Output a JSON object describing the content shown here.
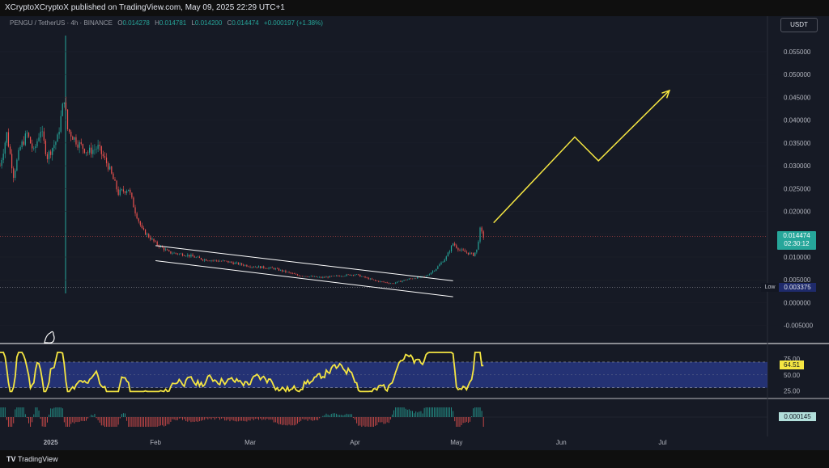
{
  "header": {
    "publish_text": "XCryptoXCryptoX published on TradingView.com, May 09, 2025 22:29 UTC+1"
  },
  "symbol": {
    "name": "PENGU / TetherUS · 4h · BINANCE",
    "open_label": "O",
    "open": "0.014278",
    "high_label": "H",
    "high": "0.014781",
    "low_label": "L",
    "low": "0.014200",
    "close_label": "C",
    "close": "0.014474",
    "change": "+0.000197 (+1.38%)"
  },
  "currency_button": "USDT",
  "price_badge": {
    "price": "0.014474",
    "countdown": "02:30:12",
    "color": "#26a69a"
  },
  "low_badge": {
    "label": "Low",
    "value": "0.003375"
  },
  "rsi_badge": "64.51",
  "macd_badge": "0.000145",
  "footer": {
    "brand": "TradingView",
    "logo": "TV"
  },
  "colors": {
    "up": "#26a69a",
    "down": "#ef5350",
    "rsi": "#f5e642",
    "projection": "#f5e642",
    "channel": "#ffffff",
    "background": "#161a25"
  },
  "chart_data": [
    {
      "type": "candlestick",
      "title": "PENGU / TetherUS · 4h · BINANCE",
      "x_tick_labels": [
        "2025",
        "Feb",
        "Mar",
        "Apr",
        "May",
        "Jun",
        "Jul"
      ],
      "x": [
        "2025-01-01",
        "2025-02-01",
        "2025-03-01",
        "2025-04-01",
        "2025-05-01",
        "2025-06-01",
        "2025-07-01"
      ],
      "y_tick_labels": [
        "0.055000",
        "0.050000",
        "0.045000",
        "0.040000",
        "0.035000",
        "0.030000",
        "0.025000",
        "0.020000",
        "0.015000",
        "0.010000",
        "0.005000",
        "0.000000",
        "-0.005000"
      ],
      "ylim": [
        -0.007,
        0.058
      ],
      "xlim": [
        "2024-12-17",
        "2025-08-01"
      ],
      "price_path": [
        {
          "t": "2024-12-17",
          "v": 0.03
        },
        {
          "t": "2024-12-19",
          "v": 0.037
        },
        {
          "t": "2024-12-21",
          "v": 0.028
        },
        {
          "t": "2024-12-23",
          "v": 0.034
        },
        {
          "t": "2024-12-25",
          "v": 0.037
        },
        {
          "t": "2024-12-27",
          "v": 0.033
        },
        {
          "t": "2024-12-29",
          "v": 0.038
        },
        {
          "t": "2024-12-31",
          "v": 0.032
        },
        {
          "t": "2025-01-03",
          "v": 0.036
        },
        {
          "t": "2025-01-05",
          "v": 0.045
        },
        {
          "t": "2025-01-06",
          "v": 0.038
        },
        {
          "t": "2025-01-09",
          "v": 0.035
        },
        {
          "t": "2025-01-12",
          "v": 0.033
        },
        {
          "t": "2025-01-15",
          "v": 0.034
        },
        {
          "t": "2025-01-18",
          "v": 0.03
        },
        {
          "t": "2025-01-21",
          "v": 0.024
        },
        {
          "t": "2025-01-24",
          "v": 0.025
        },
        {
          "t": "2025-01-26",
          "v": 0.02
        },
        {
          "t": "2025-01-28",
          "v": 0.016
        },
        {
          "t": "2025-02-01",
          "v": 0.013
        },
        {
          "t": "2025-02-05",
          "v": 0.011
        },
        {
          "t": "2025-02-10",
          "v": 0.0105
        },
        {
          "t": "2025-02-15",
          "v": 0.0095
        },
        {
          "t": "2025-02-22",
          "v": 0.009
        },
        {
          "t": "2025-03-01",
          "v": 0.008
        },
        {
          "t": "2025-03-08",
          "v": 0.0075
        },
        {
          "t": "2025-03-15",
          "v": 0.006
        },
        {
          "t": "2025-03-22",
          "v": 0.0055
        },
        {
          "t": "2025-03-29",
          "v": 0.006
        },
        {
          "t": "2025-04-01",
          "v": 0.0062
        },
        {
          "t": "2025-04-07",
          "v": 0.0048
        },
        {
          "t": "2025-04-12",
          "v": 0.0042
        },
        {
          "t": "2025-04-17",
          "v": 0.0052
        },
        {
          "t": "2025-04-22",
          "v": 0.0058
        },
        {
          "t": "2025-04-25",
          "v": 0.0075
        },
        {
          "t": "2025-04-28",
          "v": 0.01
        },
        {
          "t": "2025-04-30",
          "v": 0.013
        },
        {
          "t": "2025-05-02",
          "v": 0.0115
        },
        {
          "t": "2025-05-04",
          "v": 0.011
        },
        {
          "t": "2025-05-06",
          "v": 0.0105
        },
        {
          "t": "2025-05-07",
          "v": 0.0115
        },
        {
          "t": "2025-05-08",
          "v": 0.016
        },
        {
          "t": "2025-05-09",
          "v": 0.014474
        }
      ],
      "channel_upper": [
        {
          "t": "2025-02-01",
          "v": 0.0125
        },
        {
          "t": "2025-04-30",
          "v": 0.0048
        }
      ],
      "channel_lower": [
        {
          "t": "2025-02-01",
          "v": 0.0092
        },
        {
          "t": "2025-04-30",
          "v": 0.0013
        }
      ],
      "projection": [
        {
          "t": "2025-05-12",
          "v": 0.0175
        },
        {
          "t": "2025-06-05",
          "v": 0.0363
        },
        {
          "t": "2025-06-12",
          "v": 0.0311
        },
        {
          "t": "2025-07-03",
          "v": 0.0465
        }
      ],
      "current_price": 0.014474,
      "low_price": 0.003375
    },
    {
      "type": "line",
      "title": "RSI",
      "y_tick_labels": [
        "75.00",
        "50.00",
        "25.00"
      ],
      "ylim": [
        17,
        90
      ],
      "band": [
        30,
        70
      ],
      "last_value": 64.51
    },
    {
      "type": "bar",
      "title": "MACD histogram",
      "last_value": 0.000145
    }
  ]
}
